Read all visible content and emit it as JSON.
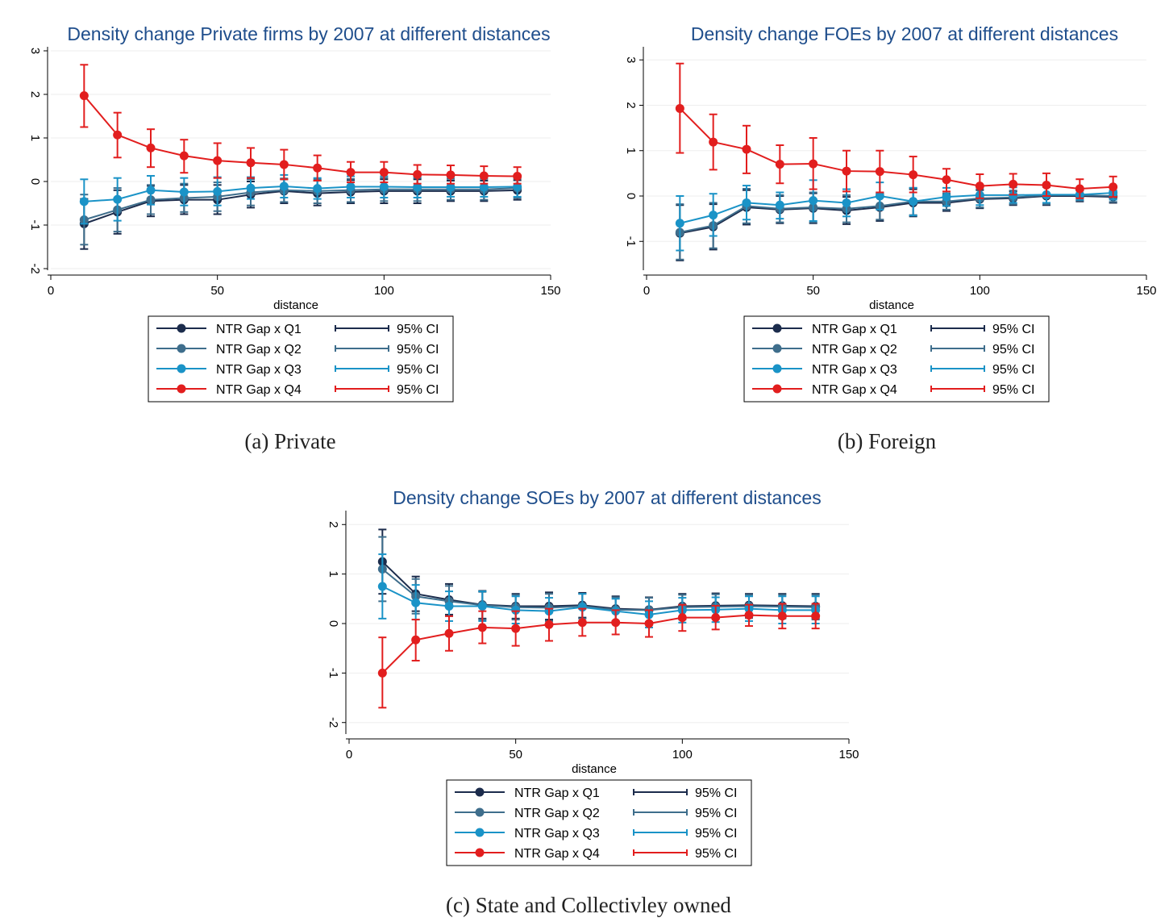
{
  "captions": [
    "(a) Private",
    "(b) Foreign",
    "(c) State and Collectivley owned"
  ],
  "legend": {
    "series_labels": [
      "NTR Gap x Q1",
      "NTR Gap x Q2",
      "NTR Gap x Q3",
      "NTR Gap x Q4"
    ],
    "ci_label": "95% CI"
  },
  "colors": {
    "Q1": "#1c2c4c",
    "Q2": "#3f6e8c",
    "Q3": "#1a93c7",
    "Q4": "#e21e1e",
    "grid": "#eeeeee",
    "title": "#1f4e8c"
  },
  "chart_data": [
    {
      "type": "line",
      "title": "Density change Private firms by 2007 at different distances",
      "xlabel": "distance",
      "ylabel": "",
      "xlim": [
        0,
        150
      ],
      "ylim": [
        -2,
        3
      ],
      "xticks": [
        0,
        50,
        100,
        150
      ],
      "yticks": [
        -2,
        -1,
        0,
        1,
        2,
        3
      ],
      "x": [
        10,
        20,
        30,
        40,
        50,
        60,
        70,
        80,
        90,
        100,
        110,
        120,
        130,
        140
      ],
      "series": [
        {
          "name": "NTR Gap x Q1",
          "y": [
            -0.97,
            -0.7,
            -0.45,
            -0.42,
            -0.42,
            -0.3,
            -0.22,
            -0.27,
            -0.24,
            -0.22,
            -0.22,
            -0.22,
            -0.22,
            -0.2
          ],
          "lo": [
            -1.55,
            -1.2,
            -0.8,
            -0.75,
            -0.75,
            -0.6,
            -0.5,
            -0.55,
            -0.5,
            -0.5,
            -0.5,
            -0.45,
            -0.45,
            -0.42
          ],
          "hi": [
            -0.4,
            -0.2,
            -0.1,
            -0.08,
            -0.08,
            0.0,
            0.05,
            0.02,
            0.03,
            0.05,
            0.05,
            0.02,
            0.02,
            0.03
          ]
        },
        {
          "name": "NTR Gap x Q2",
          "y": [
            -0.88,
            -0.65,
            -0.42,
            -0.38,
            -0.35,
            -0.25,
            -0.2,
            -0.22,
            -0.2,
            -0.18,
            -0.18,
            -0.18,
            -0.18,
            -0.15
          ],
          "lo": [
            -1.45,
            -1.15,
            -0.75,
            -0.7,
            -0.68,
            -0.55,
            -0.47,
            -0.5,
            -0.47,
            -0.45,
            -0.45,
            -0.42,
            -0.42,
            -0.38
          ],
          "hi": [
            -0.3,
            -0.15,
            -0.08,
            -0.05,
            -0.02,
            0.05,
            0.07,
            0.05,
            0.06,
            0.08,
            0.08,
            0.06,
            0.06,
            0.07
          ]
        },
        {
          "name": "NTR Gap x Q3",
          "y": [
            -0.46,
            -0.41,
            -0.2,
            -0.24,
            -0.23,
            -0.15,
            -0.11,
            -0.16,
            -0.12,
            -0.12,
            -0.13,
            -0.13,
            -0.13,
            -0.12
          ],
          "lo": [
            -0.97,
            -0.9,
            -0.53,
            -0.55,
            -0.55,
            -0.4,
            -0.37,
            -0.4,
            -0.37,
            -0.37,
            -0.37,
            -0.35,
            -0.35,
            -0.35
          ],
          "hi": [
            0.05,
            0.08,
            0.13,
            0.08,
            0.1,
            0.1,
            0.15,
            0.08,
            0.12,
            0.12,
            0.1,
            0.1,
            0.1,
            0.1
          ]
        },
        {
          "name": "NTR Gap x Q4",
          "y": [
            1.97,
            1.07,
            0.77,
            0.59,
            0.48,
            0.43,
            0.39,
            0.31,
            0.21,
            0.21,
            0.16,
            0.15,
            0.13,
            0.12
          ],
          "lo": [
            1.25,
            0.55,
            0.33,
            0.2,
            0.08,
            0.08,
            0.05,
            0.02,
            -0.02,
            -0.02,
            -0.05,
            -0.05,
            -0.05,
            -0.05
          ],
          "hi": [
            2.68,
            1.58,
            1.2,
            0.96,
            0.88,
            0.77,
            0.73,
            0.6,
            0.45,
            0.45,
            0.38,
            0.37,
            0.35,
            0.33
          ]
        }
      ]
    },
    {
      "type": "line",
      "title": "Density change FOEs by 2007 at different distances",
      "xlabel": "distance",
      "ylabel": "",
      "xlim": [
        0,
        150
      ],
      "ylim": [
        -1.6,
        3.2
      ],
      "xticks": [
        0,
        50,
        100,
        150
      ],
      "yticks": [
        -1,
        0,
        1,
        2,
        3
      ],
      "x": [
        10,
        20,
        30,
        40,
        50,
        60,
        70,
        80,
        90,
        100,
        110,
        120,
        130,
        140
      ],
      "series": [
        {
          "name": "NTR Gap x Q1",
          "y": [
            -0.82,
            -0.68,
            -0.25,
            -0.3,
            -0.27,
            -0.32,
            -0.25,
            -0.15,
            -0.15,
            -0.07,
            -0.05,
            0.0,
            0.0,
            -0.02
          ],
          "lo": [
            -1.42,
            -1.18,
            -0.63,
            -0.6,
            -0.6,
            -0.62,
            -0.55,
            -0.45,
            -0.33,
            -0.27,
            -0.2,
            -0.2,
            -0.12,
            -0.15
          ],
          "hi": [
            -0.2,
            -0.18,
            0.13,
            0.0,
            0.06,
            -0.02,
            0.05,
            0.15,
            0.03,
            0.13,
            0.1,
            0.2,
            0.12,
            0.1
          ]
        },
        {
          "name": "NTR Gap x Q2",
          "y": [
            -0.8,
            -0.65,
            -0.22,
            -0.28,
            -0.25,
            -0.28,
            -0.22,
            -0.12,
            -0.12,
            -0.05,
            -0.03,
            0.02,
            0.02,
            0.0
          ],
          "lo": [
            -1.4,
            -1.15,
            -0.6,
            -0.58,
            -0.58,
            -0.58,
            -0.52,
            -0.42,
            -0.3,
            -0.25,
            -0.18,
            -0.18,
            -0.1,
            -0.13
          ],
          "hi": [
            -0.18,
            -0.15,
            0.16,
            0.02,
            0.08,
            0.02,
            0.08,
            0.18,
            0.06,
            0.15,
            0.12,
            0.22,
            0.14,
            0.12
          ]
        },
        {
          "name": "NTR Gap x Q3",
          "y": [
            -0.6,
            -0.42,
            -0.15,
            -0.2,
            -0.1,
            -0.15,
            0.0,
            -0.12,
            -0.02,
            0.02,
            0.02,
            0.03,
            0.03,
            0.07
          ],
          "lo": [
            -1.2,
            -0.88,
            -0.52,
            -0.5,
            -0.55,
            -0.45,
            -0.3,
            -0.43,
            -0.22,
            -0.2,
            -0.15,
            -0.15,
            -0.08,
            -0.08
          ],
          "hi": [
            0.0,
            0.05,
            0.23,
            0.08,
            0.35,
            0.15,
            0.3,
            0.18,
            0.18,
            0.24,
            0.19,
            0.21,
            0.14,
            0.22
          ]
        },
        {
          "name": "NTR Gap x Q4",
          "y": [
            1.93,
            1.19,
            1.03,
            0.7,
            0.71,
            0.55,
            0.54,
            0.47,
            0.36,
            0.22,
            0.26,
            0.24,
            0.16,
            0.2
          ],
          "lo": [
            0.95,
            0.58,
            0.5,
            0.28,
            0.15,
            0.1,
            0.08,
            0.08,
            0.1,
            -0.05,
            0.03,
            0.0,
            -0.05,
            -0.02
          ],
          "hi": [
            2.92,
            1.8,
            1.55,
            1.12,
            1.28,
            1.0,
            1.0,
            0.87,
            0.6,
            0.48,
            0.49,
            0.5,
            0.37,
            0.43
          ]
        }
      ]
    },
    {
      "type": "line",
      "title": "Density change SOEs by 2007 at different distances",
      "xlabel": "distance",
      "ylabel": "",
      "xlim": [
        0,
        150
      ],
      "ylim": [
        -2.2,
        2.2
      ],
      "xticks": [
        0,
        50,
        100,
        150
      ],
      "yticks": [
        -2,
        -1,
        0,
        1,
        2
      ],
      "x": [
        10,
        20,
        30,
        40,
        50,
        60,
        70,
        80,
        90,
        100,
        110,
        120,
        130,
        140
      ],
      "series": [
        {
          "name": "NTR Gap x Q1",
          "y": [
            1.25,
            0.6,
            0.48,
            0.38,
            0.35,
            0.35,
            0.37,
            0.3,
            0.28,
            0.35,
            0.36,
            0.37,
            0.36,
            0.35
          ],
          "lo": [
            0.6,
            0.25,
            0.18,
            0.1,
            0.1,
            0.08,
            0.12,
            0.05,
            0.03,
            0.1,
            0.12,
            0.13,
            0.12,
            0.1
          ],
          "hi": [
            1.9,
            0.95,
            0.8,
            0.66,
            0.6,
            0.63,
            0.62,
            0.55,
            0.53,
            0.6,
            0.61,
            0.6,
            0.6,
            0.6
          ]
        },
        {
          "name": "NTR Gap x Q2",
          "y": [
            1.1,
            0.55,
            0.45,
            0.37,
            0.33,
            0.32,
            0.35,
            0.28,
            0.27,
            0.33,
            0.34,
            0.35,
            0.34,
            0.33
          ],
          "lo": [
            0.45,
            0.2,
            0.15,
            0.08,
            0.08,
            0.05,
            0.1,
            0.03,
            0.02,
            0.08,
            0.1,
            0.11,
            0.1,
            0.08
          ],
          "hi": [
            1.75,
            0.9,
            0.76,
            0.64,
            0.58,
            0.6,
            0.6,
            0.53,
            0.52,
            0.58,
            0.59,
            0.58,
            0.58,
            0.58
          ]
        },
        {
          "name": "NTR Gap x Q3",
          "y": [
            0.75,
            0.42,
            0.35,
            0.35,
            0.27,
            0.25,
            0.33,
            0.25,
            0.18,
            0.27,
            0.28,
            0.3,
            0.27,
            0.27
          ],
          "lo": [
            0.1,
            0.08,
            0.05,
            0.05,
            0.0,
            -0.02,
            0.05,
            0.0,
            -0.08,
            0.02,
            0.03,
            0.05,
            0.0,
            0.0
          ],
          "hi": [
            1.4,
            0.78,
            0.65,
            0.65,
            0.55,
            0.52,
            0.6,
            0.5,
            0.45,
            0.52,
            0.53,
            0.55,
            0.55,
            0.55
          ]
        },
        {
          "name": "NTR Gap x Q4",
          "y": [
            -1.0,
            -0.33,
            -0.2,
            -0.08,
            -0.1,
            -0.02,
            0.02,
            0.02,
            0.0,
            0.12,
            0.12,
            0.17,
            0.15,
            0.15
          ],
          "lo": [
            -1.7,
            -0.75,
            -0.55,
            -0.4,
            -0.45,
            -0.35,
            -0.25,
            -0.22,
            -0.27,
            -0.15,
            -0.12,
            -0.05,
            -0.1,
            -0.1
          ],
          "hi": [
            -0.28,
            0.08,
            0.15,
            0.25,
            0.25,
            0.3,
            0.3,
            0.27,
            0.27,
            0.38,
            0.36,
            0.38,
            0.4,
            0.4
          ]
        }
      ]
    }
  ]
}
